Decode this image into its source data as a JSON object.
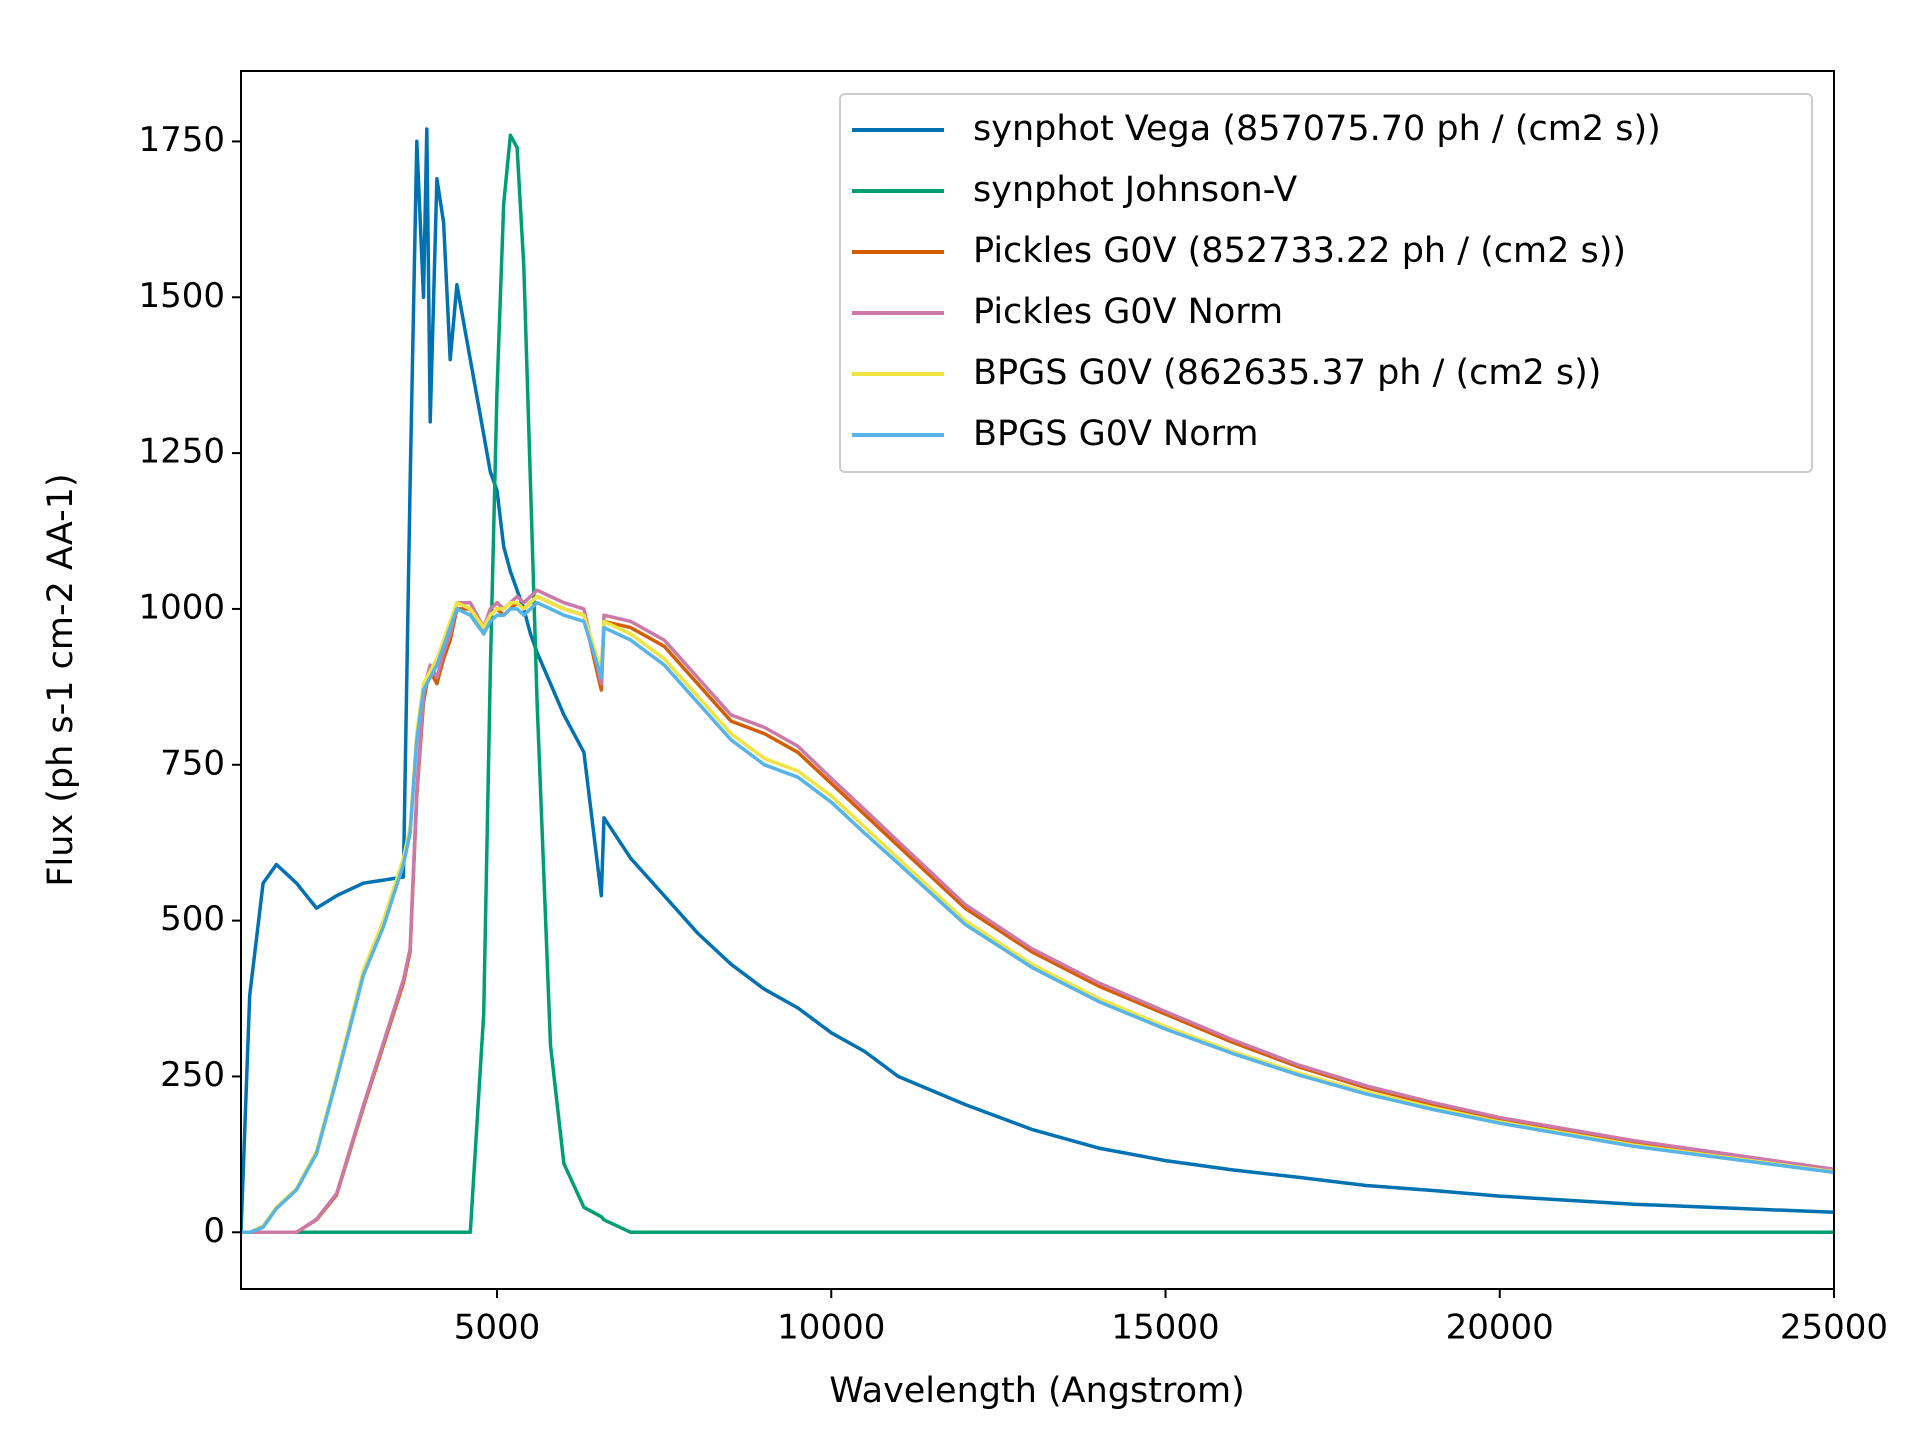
{
  "chart_data": {
    "type": "line",
    "x_label": "Wavelength (Angstrom)",
    "y_label": "Flux (ph s-1 cm-2 AA-1)",
    "x": [
      1170,
      1300,
      1500,
      1700,
      2000,
      2300,
      2600,
      3000,
      3300,
      3600,
      3700,
      3800,
      3900,
      3950,
      4000,
      4100,
      4200,
      4300,
      4400,
      4600,
      4800,
      4900,
      5000,
      5100,
      5200,
      5300,
      5400,
      5500,
      5600,
      5800,
      6000,
      6300,
      6560,
      6600,
      7000,
      7500,
      8000,
      8500,
      9000,
      9500,
      10000,
      10500,
      11000,
      12000,
      13000,
      14000,
      15000,
      16000,
      17000,
      18000,
      19000,
      20000,
      22000,
      25000
    ],
    "series": [
      {
        "name": "synphot Vega (857075.70 ph / (cm2 s))",
        "color": "#0072b2",
        "values": [
          0,
          380,
          560,
          590,
          560,
          520,
          540,
          560,
          565,
          570,
          1200,
          1750,
          1500,
          1770,
          1300,
          1690,
          1620,
          1400,
          1520,
          1400,
          1280,
          1220,
          1190,
          1100,
          1060,
          1030,
          1000,
          960,
          930,
          880,
          830,
          770,
          540,
          665,
          600,
          540,
          480,
          430,
          390,
          360,
          320,
          290,
          250,
          205,
          165,
          135,
          115,
          100,
          88,
          75,
          67,
          58,
          45,
          32
        ]
      },
      {
        "name": "synphot Johnson-V",
        "color": "#009e73",
        "values": [
          0,
          0,
          0,
          0,
          0,
          0,
          0,
          0,
          0,
          0,
          0,
          0,
          0,
          0,
          0,
          0,
          0,
          0,
          0,
          0,
          350,
          900,
          1350,
          1650,
          1760,
          1740,
          1550,
          1200,
          850,
          300,
          110,
          40,
          25,
          20,
          0,
          0,
          0,
          0,
          0,
          0,
          0,
          0,
          0,
          0,
          0,
          0,
          0,
          0,
          0,
          0,
          0,
          0,
          0,
          0
        ]
      },
      {
        "name": "Pickles G0V  (852733.22 ph / (cm2 s))",
        "color": "#d55e00",
        "values": [
          0,
          0,
          0,
          0,
          0,
          20,
          60,
          200,
          300,
          400,
          450,
          700,
          850,
          880,
          900,
          880,
          920,
          950,
          1000,
          1000,
          960,
          990,
          1000,
          990,
          1000,
          1010,
          1000,
          1010,
          1020,
          1010,
          1000,
          990,
          870,
          980,
          970,
          940,
          880,
          820,
          800,
          770,
          720,
          670,
          620,
          520,
          450,
          395,
          350,
          305,
          265,
          232,
          205,
          182,
          145,
          100
        ]
      },
      {
        "name": "Pickles G0V Norm",
        "color": "#cc79a7",
        "values": [
          0,
          0,
          0,
          0,
          0,
          21,
          62,
          203,
          304,
          405,
          455,
          708,
          860,
          890,
          910,
          890,
          930,
          960,
          1010,
          1010,
          970,
          1000,
          1010,
          1000,
          1010,
          1020,
          1010,
          1020,
          1030,
          1020,
          1010,
          1000,
          880,
          990,
          980,
          950,
          890,
          830,
          810,
          780,
          728,
          678,
          627,
          526,
          455,
          400,
          354,
          309,
          268,
          235,
          208,
          184,
          147,
          101
        ]
      },
      {
        "name": "BPGS G0V (862635.37 ph / (cm2 s))",
        "color": "#f0e442",
        "values": [
          0,
          0,
          10,
          40,
          70,
          130,
          250,
          420,
          500,
          600,
          650,
          800,
          880,
          890,
          900,
          920,
          950,
          980,
          1010,
          1000,
          970,
          990,
          1000,
          1000,
          1010,
          1010,
          1000,
          1010,
          1020,
          1010,
          1000,
          990,
          900,
          980,
          960,
          920,
          860,
          800,
          760,
          740,
          700,
          650,
          600,
          500,
          430,
          375,
          330,
          290,
          255,
          225,
          200,
          177,
          140,
          97
        ]
      },
      {
        "name": "BPGS G0V Norm",
        "color": "#56b4e9",
        "values": [
          0,
          0,
          8,
          38,
          68,
          126,
          245,
          412,
          490,
          590,
          640,
          790,
          870,
          880,
          890,
          910,
          940,
          970,
          1000,
          990,
          960,
          980,
          990,
          990,
          1000,
          1000,
          990,
          1000,
          1010,
          1000,
          990,
          980,
          890,
          970,
          950,
          910,
          850,
          790,
          750,
          730,
          690,
          640,
          592,
          494,
          425,
          370,
          326,
          287,
          252,
          222,
          197,
          175,
          138,
          96
        ]
      }
    ],
    "xlim": [
      1170,
      25000
    ],
    "xticks": [
      5000,
      10000,
      15000,
      20000,
      25000
    ],
    "ylim": [
      -91,
      1863
    ],
    "yticks": [
      0,
      250,
      500,
      750,
      1000,
      1250,
      1500,
      1750
    ],
    "legend": "upper right",
    "grid": false
  }
}
